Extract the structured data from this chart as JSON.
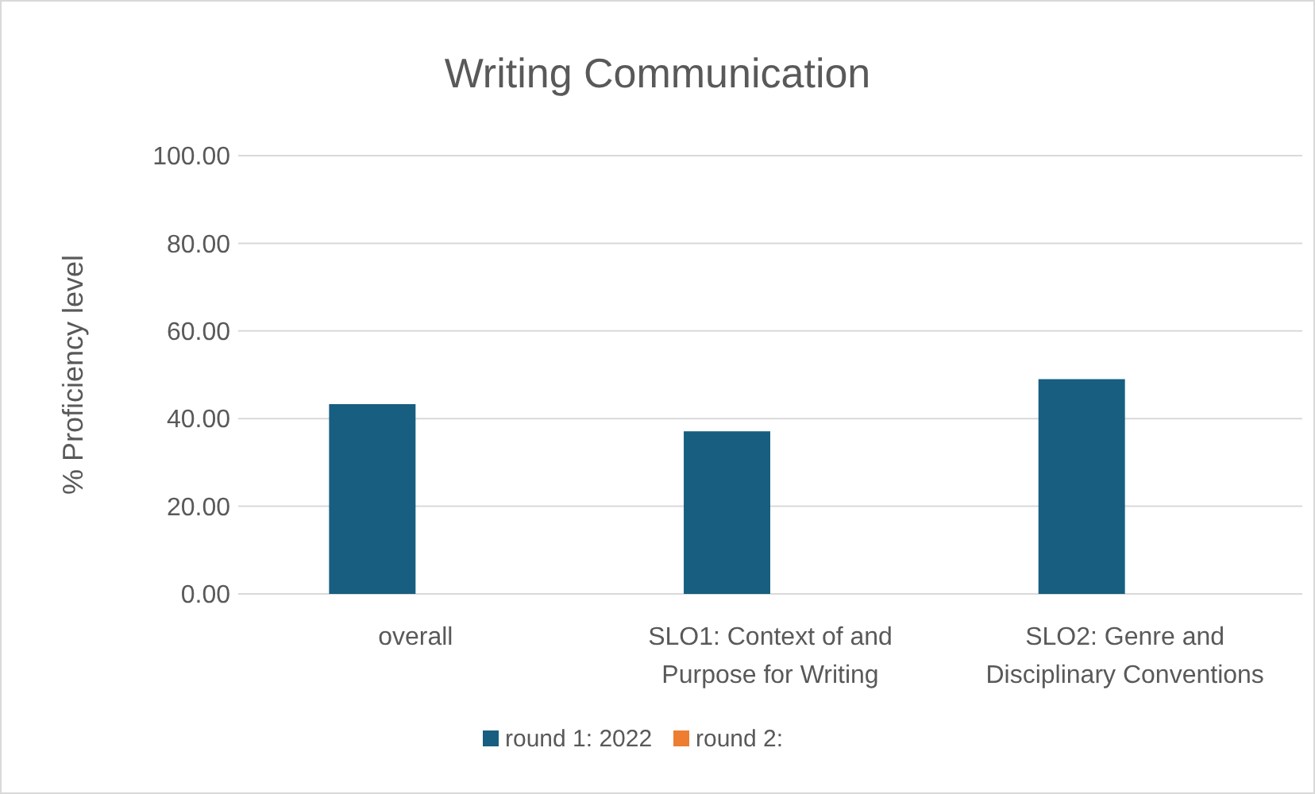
{
  "chart_data": {
    "type": "bar",
    "title": "Writing Communication",
    "ylabel": "% Proficiency level",
    "categories": [
      "overall",
      "SLO1: Context of and Purpose for Writing",
      "SLO2: Genre and Disciplinary Conventions"
    ],
    "series": [
      {
        "name": "round 1: 2022",
        "color": "#175e80",
        "values": [
          43.3,
          37.1,
          49.0
        ]
      },
      {
        "name": "round 2:",
        "color": "#ed7d31",
        "values": [
          null,
          null,
          null
        ]
      }
    ],
    "ylim": [
      0,
      100
    ],
    "yticks": [
      {
        "value": 0,
        "label": "0.00"
      },
      {
        "value": 20,
        "label": "20.00"
      },
      {
        "value": 40,
        "label": "40.00"
      },
      {
        "value": 60,
        "label": "60.00"
      },
      {
        "value": 80,
        "label": "80.00"
      },
      {
        "value": 100,
        "label": "100.00"
      }
    ],
    "grid": "y",
    "legend": "bottom"
  }
}
